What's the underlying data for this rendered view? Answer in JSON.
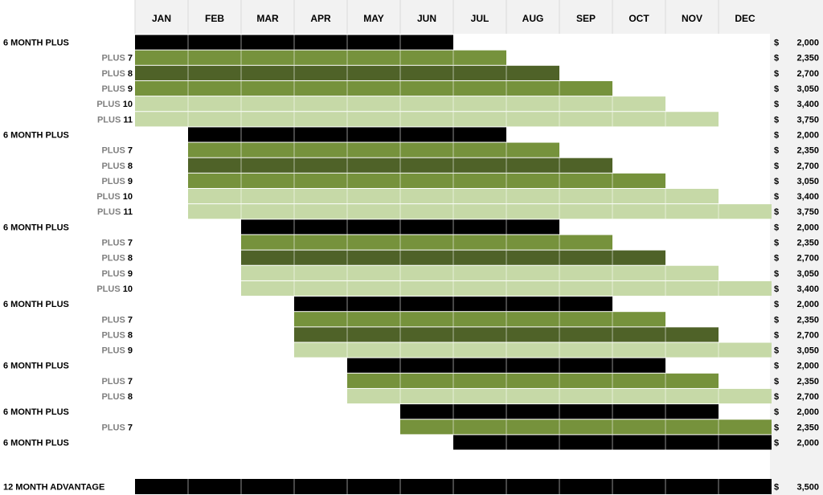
{
  "chart_data": {
    "type": "gantt",
    "months": [
      "JAN",
      "FEB",
      "MAR",
      "APR",
      "MAY",
      "JUN",
      "JUL",
      "AUG",
      "SEP",
      "OCT",
      "NOV",
      "DEC"
    ],
    "currency_symbol": "$",
    "colors": {
      "base": "#000000",
      "plus_light": "#c6d9a7",
      "plus_mid": "#76923c",
      "plus_dark": "#4f6228",
      "header_bg": "#f2f2f2",
      "price_bg": "#f2f2f2",
      "plus_label": "#808080",
      "grid": "#d9d9d9"
    },
    "rows": [
      {
        "prefix": "6 MONTH PLUS",
        "num": "",
        "start": 1,
        "end": 6,
        "shade": "base",
        "price": "2,000"
      },
      {
        "prefix": "PLUS",
        "num": "7",
        "start": 1,
        "end": 7,
        "shade": "plus_mid",
        "price": "2,350"
      },
      {
        "prefix": "PLUS",
        "num": "8",
        "start": 1,
        "end": 8,
        "shade": "plus_dark",
        "price": "2,700"
      },
      {
        "prefix": "PLUS",
        "num": "9",
        "start": 1,
        "end": 9,
        "shade": "plus_mid",
        "price": "3,050"
      },
      {
        "prefix": "PLUS",
        "num": "10",
        "start": 1,
        "end": 10,
        "shade": "plus_light",
        "price": "3,400"
      },
      {
        "prefix": "PLUS",
        "num": "11",
        "start": 1,
        "end": 11,
        "shade": "plus_light",
        "price": "3,750"
      },
      {
        "prefix": "6 MONTH PLUS",
        "num": "",
        "start": 2,
        "end": 7,
        "shade": "base",
        "price": "2,000"
      },
      {
        "prefix": "PLUS",
        "num": "7",
        "start": 2,
        "end": 8,
        "shade": "plus_mid",
        "price": "2,350"
      },
      {
        "prefix": "PLUS",
        "num": "8",
        "start": 2,
        "end": 9,
        "shade": "plus_dark",
        "price": "2,700"
      },
      {
        "prefix": "PLUS",
        "num": "9",
        "start": 2,
        "end": 10,
        "shade": "plus_mid",
        "price": "3,050"
      },
      {
        "prefix": "PLUS",
        "num": "10",
        "start": 2,
        "end": 11,
        "shade": "plus_light",
        "price": "3,400"
      },
      {
        "prefix": "PLUS",
        "num": "11",
        "start": 2,
        "end": 12,
        "shade": "plus_light",
        "price": "3,750"
      },
      {
        "prefix": "6 MONTH PLUS",
        "num": "",
        "start": 3,
        "end": 8,
        "shade": "base",
        "price": "2,000"
      },
      {
        "prefix": "PLUS",
        "num": "7",
        "start": 3,
        "end": 9,
        "shade": "plus_mid",
        "price": "2,350"
      },
      {
        "prefix": "PLUS",
        "num": "8",
        "start": 3,
        "end": 10,
        "shade": "plus_dark",
        "price": "2,700"
      },
      {
        "prefix": "PLUS",
        "num": "9",
        "start": 3,
        "end": 11,
        "shade": "plus_light",
        "price": "3,050"
      },
      {
        "prefix": "PLUS",
        "num": "10",
        "start": 3,
        "end": 12,
        "shade": "plus_light",
        "price": "3,400"
      },
      {
        "prefix": "6 MONTH PLUS",
        "num": "",
        "start": 4,
        "end": 9,
        "shade": "base",
        "price": "2,000"
      },
      {
        "prefix": "PLUS",
        "num": "7",
        "start": 4,
        "end": 10,
        "shade": "plus_mid",
        "price": "2,350"
      },
      {
        "prefix": "PLUS",
        "num": "8",
        "start": 4,
        "end": 11,
        "shade": "plus_dark",
        "price": "2,700"
      },
      {
        "prefix": "PLUS",
        "num": "9",
        "start": 4,
        "end": 12,
        "shade": "plus_light",
        "price": "3,050"
      },
      {
        "prefix": "6 MONTH PLUS",
        "num": "",
        "start": 5,
        "end": 10,
        "shade": "base",
        "price": "2,000"
      },
      {
        "prefix": "PLUS",
        "num": "7",
        "start": 5,
        "end": 11,
        "shade": "plus_mid",
        "price": "2,350"
      },
      {
        "prefix": "PLUS",
        "num": "8",
        "start": 5,
        "end": 12,
        "shade": "plus_light",
        "price": "2,700"
      },
      {
        "prefix": "6 MONTH PLUS",
        "num": "",
        "start": 6,
        "end": 11,
        "shade": "base",
        "price": "2,000"
      },
      {
        "prefix": "PLUS",
        "num": "7",
        "start": 6,
        "end": 12,
        "shade": "plus_mid",
        "price": "2,350"
      },
      {
        "prefix": "6 MONTH PLUS",
        "num": "",
        "start": 7,
        "end": 12,
        "shade": "base",
        "price": "2,000"
      }
    ],
    "advantage": {
      "label": "12 MONTH ADVANTAGE",
      "start": 1,
      "end": 12,
      "shade": "base",
      "price": "3,500"
    }
  }
}
